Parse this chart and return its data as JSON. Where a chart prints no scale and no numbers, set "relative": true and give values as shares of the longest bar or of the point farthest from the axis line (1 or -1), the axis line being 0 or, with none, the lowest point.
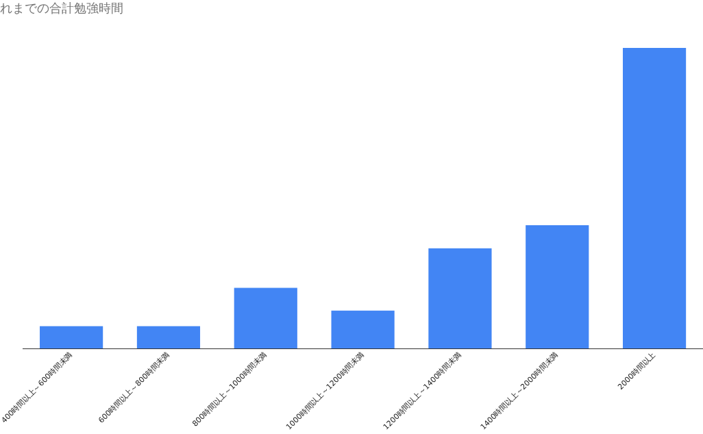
{
  "chart_data": {
    "type": "bar",
    "title": "れまでの合計勉強時間",
    "categories": [
      "400時間以上～600時間未満",
      "600時間以上～800時間未満",
      "800時間以上～1000時間未満",
      "1000時間以上～1200時間未満",
      "1200時間以上～1400時間未満",
      "1400時間以上～2000時間未満",
      "2000時間以上"
    ],
    "values": [
      0.074,
      0.074,
      0.202,
      0.126,
      0.333,
      0.41,
      1
    ],
    "color": "#4285f4",
    "relative": true
  }
}
